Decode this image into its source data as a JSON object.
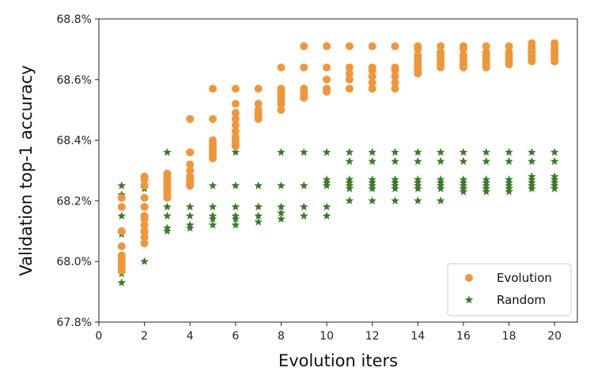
{
  "chart_data": {
    "type": "scatter",
    "title": "",
    "xlabel": "Evolution iters",
    "ylabel": "Validation top-1 accuracy",
    "xlim": [
      0,
      21
    ],
    "ylim": [
      67.8,
      68.8
    ],
    "x_ticks": [
      0,
      2,
      4,
      6,
      8,
      10,
      12,
      14,
      16,
      18,
      20
    ],
    "y_ticks": [
      67.8,
      68.0,
      68.2,
      68.4,
      68.6,
      68.8
    ],
    "y_tick_format": "percent_1dp",
    "grid": false,
    "legend_position": "bottom-right",
    "series": [
      {
        "name": "Evolution",
        "marker": "circle",
        "color": "#F0963A",
        "points": [
          [
            1,
            67.97
          ],
          [
            1,
            67.98
          ],
          [
            1,
            67.99
          ],
          [
            1,
            68.0
          ],
          [
            1,
            68.01
          ],
          [
            1,
            68.02
          ],
          [
            1,
            68.05
          ],
          [
            1,
            68.1
          ],
          [
            1,
            68.18
          ],
          [
            1,
            68.21
          ],
          [
            2,
            68.06
          ],
          [
            2,
            68.08
          ],
          [
            2,
            68.1
          ],
          [
            2,
            68.12
          ],
          [
            2,
            68.14
          ],
          [
            2,
            68.15
          ],
          [
            2,
            68.18
          ],
          [
            2,
            68.21
          ],
          [
            2,
            68.25
          ],
          [
            2,
            68.27
          ],
          [
            2,
            68.28
          ],
          [
            3,
            68.21
          ],
          [
            3,
            68.22
          ],
          [
            3,
            68.23
          ],
          [
            3,
            68.24
          ],
          [
            3,
            68.25
          ],
          [
            3,
            68.26
          ],
          [
            3,
            68.27
          ],
          [
            3,
            68.28
          ],
          [
            3,
            68.29
          ],
          [
            4,
            68.25
          ],
          [
            4,
            68.26
          ],
          [
            4,
            68.27
          ],
          [
            4,
            68.28
          ],
          [
            4,
            68.3
          ],
          [
            4,
            68.32
          ],
          [
            4,
            68.36
          ],
          [
            4,
            68.47
          ],
          [
            5,
            68.34
          ],
          [
            5,
            68.35
          ],
          [
            5,
            68.36
          ],
          [
            5,
            68.37
          ],
          [
            5,
            68.38
          ],
          [
            5,
            68.39
          ],
          [
            5,
            68.4
          ],
          [
            5,
            68.47
          ],
          [
            5,
            68.57
          ],
          [
            6,
            68.38
          ],
          [
            6,
            68.39
          ],
          [
            6,
            68.4
          ],
          [
            6,
            68.41
          ],
          [
            6,
            68.43
          ],
          [
            6,
            68.45
          ],
          [
            6,
            68.47
          ],
          [
            6,
            68.49
          ],
          [
            6,
            68.52
          ],
          [
            6,
            68.57
          ],
          [
            7,
            68.47
          ],
          [
            7,
            68.48
          ],
          [
            7,
            68.49
          ],
          [
            7,
            68.5
          ],
          [
            7,
            68.52
          ],
          [
            7,
            68.57
          ],
          [
            8,
            68.5
          ],
          [
            8,
            68.52
          ],
          [
            8,
            68.53
          ],
          [
            8,
            68.54
          ],
          [
            8,
            68.55
          ],
          [
            8,
            68.56
          ],
          [
            8,
            68.57
          ],
          [
            8,
            68.64
          ],
          [
            9,
            68.54
          ],
          [
            9,
            68.55
          ],
          [
            9,
            68.56
          ],
          [
            9,
            68.57
          ],
          [
            9,
            68.64
          ],
          [
            9,
            68.71
          ],
          [
            10,
            68.56
          ],
          [
            10,
            68.57
          ],
          [
            10,
            68.6
          ],
          [
            10,
            68.64
          ],
          [
            10,
            68.71
          ],
          [
            11,
            68.57
          ],
          [
            11,
            68.6
          ],
          [
            11,
            68.62
          ],
          [
            11,
            68.64
          ],
          [
            11,
            68.71
          ],
          [
            12,
            68.57
          ],
          [
            12,
            68.59
          ],
          [
            12,
            68.61
          ],
          [
            12,
            68.63
          ],
          [
            12,
            68.64
          ],
          [
            12,
            68.71
          ],
          [
            13,
            68.57
          ],
          [
            13,
            68.59
          ],
          [
            13,
            68.61
          ],
          [
            13,
            68.63
          ],
          [
            13,
            68.64
          ],
          [
            13,
            68.71
          ],
          [
            14,
            68.62
          ],
          [
            14,
            68.63
          ],
          [
            14,
            68.64
          ],
          [
            14,
            68.65
          ],
          [
            14,
            68.66
          ],
          [
            14,
            68.67
          ],
          [
            14,
            68.68
          ],
          [
            14,
            68.7
          ],
          [
            14,
            68.71
          ],
          [
            15,
            68.64
          ],
          [
            15,
            68.65
          ],
          [
            15,
            68.66
          ],
          [
            15,
            68.67
          ],
          [
            15,
            68.68
          ],
          [
            15,
            68.69
          ],
          [
            15,
            68.71
          ],
          [
            16,
            68.64
          ],
          [
            16,
            68.65
          ],
          [
            16,
            68.66
          ],
          [
            16,
            68.67
          ],
          [
            16,
            68.68
          ],
          [
            16,
            68.7
          ],
          [
            16,
            68.71
          ],
          [
            17,
            68.64
          ],
          [
            17,
            68.65
          ],
          [
            17,
            68.66
          ],
          [
            17,
            68.67
          ],
          [
            17,
            68.68
          ],
          [
            17,
            68.69
          ],
          [
            17,
            68.71
          ],
          [
            18,
            68.65
          ],
          [
            18,
            68.66
          ],
          [
            18,
            68.67
          ],
          [
            18,
            68.68
          ],
          [
            18,
            68.69
          ],
          [
            18,
            68.71
          ],
          [
            19,
            68.66
          ],
          [
            19,
            68.67
          ],
          [
            19,
            68.68
          ],
          [
            19,
            68.69
          ],
          [
            19,
            68.7
          ],
          [
            19,
            68.71
          ],
          [
            19,
            68.72
          ],
          [
            20,
            68.66
          ],
          [
            20,
            68.67
          ],
          [
            20,
            68.68
          ],
          [
            20,
            68.69
          ],
          [
            20,
            68.7
          ],
          [
            20,
            68.71
          ],
          [
            20,
            68.72
          ]
        ]
      },
      {
        "name": "Random",
        "marker": "star",
        "color": "#3C7A2A",
        "points": [
          [
            1,
            67.93
          ],
          [
            1,
            67.96
          ],
          [
            1,
            68.09
          ],
          [
            1,
            68.15
          ],
          [
            1,
            68.18
          ],
          [
            1,
            68.22
          ],
          [
            1,
            68.25
          ],
          [
            2,
            68.0
          ],
          [
            2,
            68.09
          ],
          [
            2,
            68.1
          ],
          [
            2,
            68.15
          ],
          [
            2,
            68.18
          ],
          [
            2,
            68.24
          ],
          [
            2,
            68.25
          ],
          [
            3,
            68.1
          ],
          [
            3,
            68.11
          ],
          [
            3,
            68.15
          ],
          [
            3,
            68.18
          ],
          [
            3,
            68.25
          ],
          [
            3,
            68.36
          ],
          [
            4,
            68.11
          ],
          [
            4,
            68.12
          ],
          [
            4,
            68.15
          ],
          [
            4,
            68.18
          ],
          [
            4,
            68.25
          ],
          [
            4,
            68.36
          ],
          [
            5,
            68.12
          ],
          [
            5,
            68.14
          ],
          [
            5,
            68.15
          ],
          [
            5,
            68.18
          ],
          [
            5,
            68.25
          ],
          [
            6,
            68.12
          ],
          [
            6,
            68.14
          ],
          [
            6,
            68.15
          ],
          [
            6,
            68.18
          ],
          [
            6,
            68.25
          ],
          [
            6,
            68.36
          ],
          [
            7,
            68.13
          ],
          [
            7,
            68.15
          ],
          [
            7,
            68.18
          ],
          [
            7,
            68.25
          ],
          [
            8,
            68.14
          ],
          [
            8,
            68.16
          ],
          [
            8,
            68.18
          ],
          [
            8,
            68.25
          ],
          [
            8,
            68.36
          ],
          [
            9,
            68.15
          ],
          [
            9,
            68.18
          ],
          [
            9,
            68.25
          ],
          [
            9,
            68.36
          ],
          [
            10,
            68.15
          ],
          [
            10,
            68.18
          ],
          [
            10,
            68.25
          ],
          [
            10,
            68.26
          ],
          [
            10,
            68.27
          ],
          [
            10,
            68.36
          ],
          [
            11,
            68.2
          ],
          [
            11,
            68.24
          ],
          [
            11,
            68.25
          ],
          [
            11,
            68.26
          ],
          [
            11,
            68.27
          ],
          [
            11,
            68.33
          ],
          [
            11,
            68.36
          ],
          [
            12,
            68.2
          ],
          [
            12,
            68.24
          ],
          [
            12,
            68.25
          ],
          [
            12,
            68.26
          ],
          [
            12,
            68.27
          ],
          [
            12,
            68.33
          ],
          [
            12,
            68.36
          ],
          [
            13,
            68.2
          ],
          [
            13,
            68.24
          ],
          [
            13,
            68.25
          ],
          [
            13,
            68.26
          ],
          [
            13,
            68.27
          ],
          [
            13,
            68.33
          ],
          [
            13,
            68.36
          ],
          [
            14,
            68.2
          ],
          [
            14,
            68.24
          ],
          [
            14,
            68.25
          ],
          [
            14,
            68.26
          ],
          [
            14,
            68.27
          ],
          [
            14,
            68.33
          ],
          [
            14,
            68.36
          ],
          [
            15,
            68.2
          ],
          [
            15,
            68.24
          ],
          [
            15,
            68.25
          ],
          [
            15,
            68.26
          ],
          [
            15,
            68.27
          ],
          [
            15,
            68.33
          ],
          [
            15,
            68.36
          ],
          [
            16,
            68.23
          ],
          [
            16,
            68.24
          ],
          [
            16,
            68.25
          ],
          [
            16,
            68.26
          ],
          [
            16,
            68.27
          ],
          [
            16,
            68.33
          ],
          [
            16,
            68.36
          ],
          [
            17,
            68.23
          ],
          [
            17,
            68.24
          ],
          [
            17,
            68.25
          ],
          [
            17,
            68.26
          ],
          [
            17,
            68.27
          ],
          [
            17,
            68.33
          ],
          [
            17,
            68.36
          ],
          [
            18,
            68.23
          ],
          [
            18,
            68.24
          ],
          [
            18,
            68.25
          ],
          [
            18,
            68.26
          ],
          [
            18,
            68.27
          ],
          [
            18,
            68.33
          ],
          [
            18,
            68.36
          ],
          [
            19,
            68.24
          ],
          [
            19,
            68.25
          ],
          [
            19,
            68.26
          ],
          [
            19,
            68.27
          ],
          [
            19,
            68.28
          ],
          [
            19,
            68.33
          ],
          [
            19,
            68.36
          ],
          [
            20,
            68.24
          ],
          [
            20,
            68.25
          ],
          [
            20,
            68.26
          ],
          [
            20,
            68.27
          ],
          [
            20,
            68.28
          ],
          [
            20,
            68.33
          ],
          [
            20,
            68.36
          ]
        ]
      }
    ]
  }
}
